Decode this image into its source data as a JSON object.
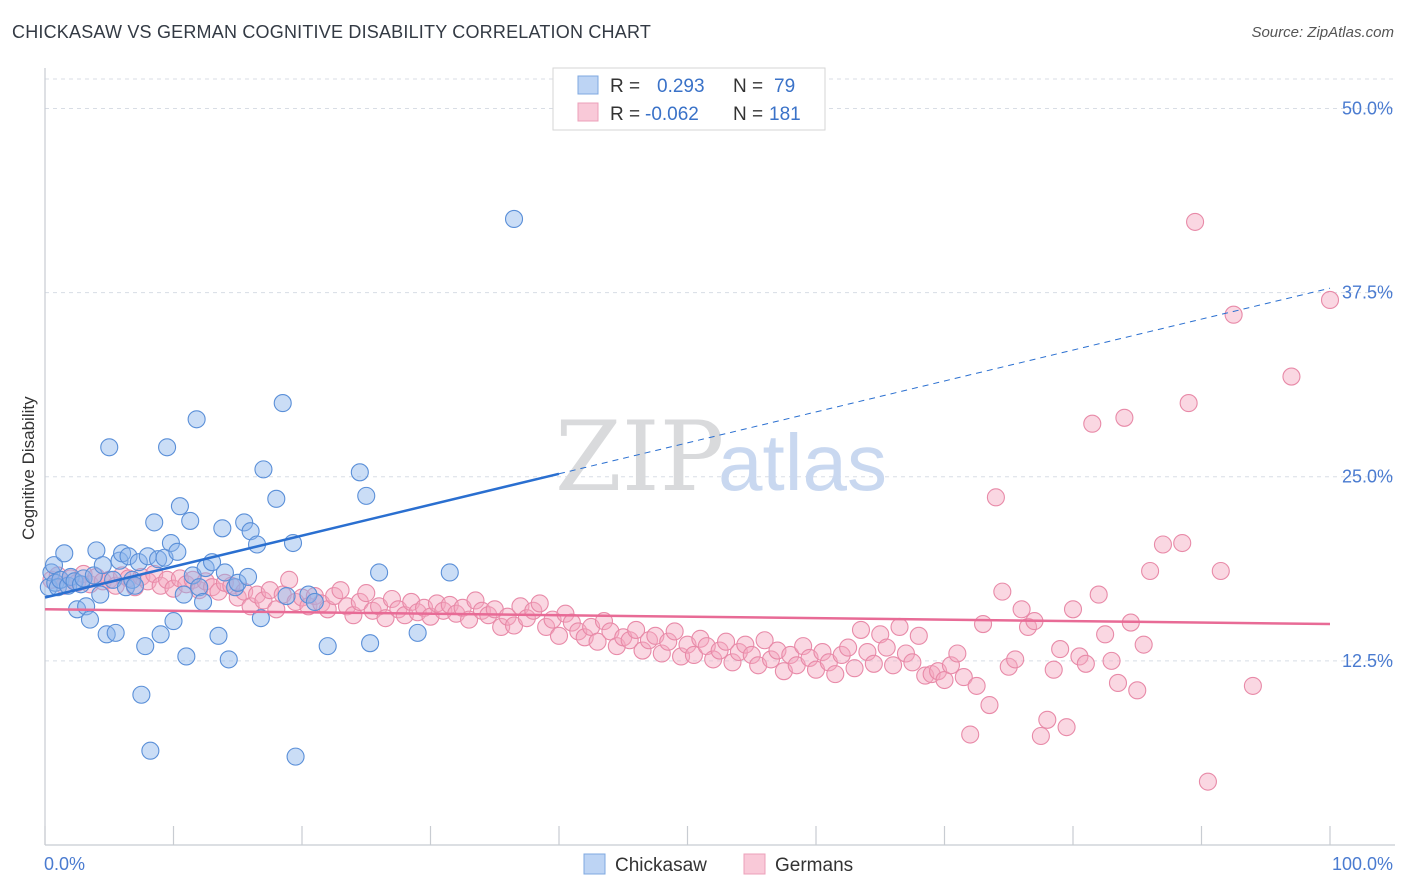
{
  "header": {
    "title": "CHICKASAW VS GERMAN COGNITIVE DISABILITY CORRELATION CHART",
    "source": "Source: ZipAtlas.com"
  },
  "watermark": {
    "zip": "ZIP",
    "atlas": "atlas"
  },
  "legend": {
    "rows": [
      {
        "r_label": "R =",
        "r_value": "0.293",
        "n_label": "N =",
        "n_value": "79",
        "color": "#8ab4ea"
      },
      {
        "r_label": "R =",
        "r_value": "-0.062",
        "n_label": "N =",
        "n_value": "181",
        "color": "#f4a6bf"
      }
    ]
  },
  "bottom_legend": [
    "Chickasaw",
    "Germans"
  ],
  "chart_data": {
    "type": "scatter",
    "title": "CHICKASAW VS GERMAN COGNITIVE DISABILITY CORRELATION CHART",
    "xlabel": "",
    "ylabel": "Cognitive Disability",
    "xlim": [
      0,
      100
    ],
    "ylim": [
      0,
      52
    ],
    "x_tick_labels": [
      "0.0%",
      "100.0%"
    ],
    "y_ticks": [
      12.5,
      25.0,
      37.5,
      50.0
    ],
    "y_tick_labels": [
      "12.5%",
      "25.0%",
      "37.5%",
      "50.0%"
    ],
    "grid": "horizontal dashed",
    "series": [
      {
        "name": "Chickasaw",
        "color": "#8ab4ea",
        "stroke": "#5a8fd8",
        "trend": {
          "x0": 0,
          "y0": 16.8,
          "x1": 40,
          "y1": 25.2,
          "dashed_to": 100,
          "dashed_y": 37.8,
          "color": "#2a6fd0"
        },
        "points": [
          [
            0.3,
            17.5
          ],
          [
            0.5,
            18.5
          ],
          [
            0.7,
            19.0
          ],
          [
            0.8,
            17.8
          ],
          [
            1.0,
            17.5
          ],
          [
            1.2,
            18.0
          ],
          [
            1.5,
            19.8
          ],
          [
            1.8,
            17.6
          ],
          [
            2.0,
            18.2
          ],
          [
            2.3,
            17.9
          ],
          [
            2.5,
            16.0
          ],
          [
            2.8,
            17.7
          ],
          [
            3.0,
            18.1
          ],
          [
            3.2,
            16.2
          ],
          [
            3.5,
            15.3
          ],
          [
            3.8,
            18.3
          ],
          [
            4.0,
            20.0
          ],
          [
            4.3,
            17.0
          ],
          [
            4.5,
            19.0
          ],
          [
            4.8,
            14.3
          ],
          [
            5.0,
            27.0
          ],
          [
            5.3,
            18.0
          ],
          [
            5.5,
            14.4
          ],
          [
            5.8,
            19.3
          ],
          [
            6.0,
            19.8
          ],
          [
            6.3,
            17.5
          ],
          [
            6.5,
            19.6
          ],
          [
            6.8,
            18.0
          ],
          [
            7.0,
            17.6
          ],
          [
            7.3,
            19.2
          ],
          [
            7.5,
            10.2
          ],
          [
            7.8,
            13.5
          ],
          [
            8.0,
            19.6
          ],
          [
            8.2,
            6.4
          ],
          [
            8.5,
            21.9
          ],
          [
            8.8,
            19.4
          ],
          [
            9.0,
            14.3
          ],
          [
            9.3,
            19.5
          ],
          [
            9.5,
            27.0
          ],
          [
            9.8,
            20.5
          ],
          [
            10.0,
            15.2
          ],
          [
            10.3,
            19.9
          ],
          [
            10.5,
            23.0
          ],
          [
            10.8,
            17.0
          ],
          [
            11.0,
            12.8
          ],
          [
            11.3,
            22.0
          ],
          [
            11.5,
            18.3
          ],
          [
            11.8,
            28.9
          ],
          [
            12.0,
            17.5
          ],
          [
            12.3,
            16.5
          ],
          [
            12.5,
            18.8
          ],
          [
            13.0,
            19.2
          ],
          [
            13.5,
            14.2
          ],
          [
            13.8,
            21.5
          ],
          [
            14.0,
            18.5
          ],
          [
            14.3,
            12.6
          ],
          [
            14.8,
            17.5
          ],
          [
            15.0,
            17.8
          ],
          [
            15.5,
            21.9
          ],
          [
            15.8,
            18.2
          ],
          [
            16.0,
            21.3
          ],
          [
            16.5,
            20.4
          ],
          [
            16.8,
            15.4
          ],
          [
            17.0,
            25.5
          ],
          [
            18.0,
            23.5
          ],
          [
            18.5,
            30.0
          ],
          [
            18.8,
            16.9
          ],
          [
            19.3,
            20.5
          ],
          [
            19.5,
            6.0
          ],
          [
            20.5,
            17.0
          ],
          [
            21.0,
            16.5
          ],
          [
            22.0,
            13.5
          ],
          [
            24.5,
            25.3
          ],
          [
            25.0,
            23.7
          ],
          [
            25.3,
            13.7
          ],
          [
            26.0,
            18.5
          ],
          [
            29.0,
            14.4
          ],
          [
            31.5,
            18.5
          ],
          [
            36.5,
            42.5
          ]
        ]
      },
      {
        "name": "Germans",
        "color": "#f4a6bf",
        "stroke": "#e88aa8",
        "trend": {
          "x0": 0,
          "y0": 16.0,
          "x1": 100,
          "y1": 15.0,
          "color": "#e86b96"
        },
        "points": [
          [
            0.5,
            18.0
          ],
          [
            1.0,
            18.3
          ],
          [
            1.5,
            17.6
          ],
          [
            2.0,
            18.1
          ],
          [
            2.5,
            17.8
          ],
          [
            3.0,
            18.4
          ],
          [
            3.5,
            17.7
          ],
          [
            4.0,
            18.2
          ],
          [
            4.5,
            17.9
          ],
          [
            5.0,
            18.0
          ],
          [
            5.5,
            17.6
          ],
          [
            6.0,
            18.3
          ],
          [
            6.5,
            18.1
          ],
          [
            7.0,
            17.5
          ],
          [
            7.5,
            18.2
          ],
          [
            8.0,
            17.9
          ],
          [
            8.5,
            18.4
          ],
          [
            9.0,
            17.6
          ],
          [
            9.5,
            18.0
          ],
          [
            10.0,
            17.4
          ],
          [
            10.5,
            18.1
          ],
          [
            11.0,
            17.7
          ],
          [
            11.5,
            18.0
          ],
          [
            12.0,
            17.3
          ],
          [
            12.5,
            17.9
          ],
          [
            13.0,
            17.5
          ],
          [
            13.5,
            17.2
          ],
          [
            14.0,
            17.8
          ],
          [
            14.5,
            17.6
          ],
          [
            15.0,
            16.8
          ],
          [
            15.5,
            17.2
          ],
          [
            16.0,
            16.2
          ],
          [
            16.5,
            17.0
          ],
          [
            17.0,
            16.6
          ],
          [
            17.5,
            17.3
          ],
          [
            18.0,
            16.0
          ],
          [
            18.5,
            17.0
          ],
          [
            19.0,
            18.0
          ],
          [
            19.5,
            16.5
          ],
          [
            20.0,
            16.8
          ],
          [
            20.5,
            16.2
          ],
          [
            21.0,
            16.9
          ],
          [
            21.5,
            16.4
          ],
          [
            22.0,
            16.0
          ],
          [
            22.5,
            16.9
          ],
          [
            23.0,
            17.3
          ],
          [
            23.5,
            16.2
          ],
          [
            24.0,
            15.6
          ],
          [
            24.5,
            16.5
          ],
          [
            25.0,
            17.1
          ],
          [
            25.5,
            15.9
          ],
          [
            26.0,
            16.2
          ],
          [
            26.5,
            15.4
          ],
          [
            27.0,
            16.7
          ],
          [
            27.5,
            16.0
          ],
          [
            28.0,
            15.6
          ],
          [
            28.5,
            16.5
          ],
          [
            29.0,
            15.8
          ],
          [
            29.5,
            16.1
          ],
          [
            30.0,
            15.5
          ],
          [
            30.5,
            16.4
          ],
          [
            31.0,
            15.9
          ],
          [
            31.5,
            16.3
          ],
          [
            32.0,
            15.7
          ],
          [
            32.5,
            16.1
          ],
          [
            33.0,
            15.3
          ],
          [
            33.5,
            16.6
          ],
          [
            34.0,
            15.9
          ],
          [
            34.5,
            15.6
          ],
          [
            35.0,
            16.0
          ],
          [
            35.5,
            14.8
          ],
          [
            36.0,
            15.5
          ],
          [
            36.5,
            14.9
          ],
          [
            37.0,
            16.2
          ],
          [
            37.5,
            15.4
          ],
          [
            38.0,
            15.9
          ],
          [
            38.5,
            16.4
          ],
          [
            39.0,
            14.8
          ],
          [
            39.5,
            15.3
          ],
          [
            40.0,
            14.2
          ],
          [
            40.5,
            15.7
          ],
          [
            41.0,
            15.1
          ],
          [
            41.5,
            14.5
          ],
          [
            42.0,
            14.1
          ],
          [
            42.5,
            14.8
          ],
          [
            43.0,
            13.8
          ],
          [
            43.5,
            15.2
          ],
          [
            44.0,
            14.5
          ],
          [
            44.5,
            13.5
          ],
          [
            45.0,
            14.1
          ],
          [
            45.5,
            13.9
          ],
          [
            46.0,
            14.6
          ],
          [
            46.5,
            13.2
          ],
          [
            47.0,
            13.9
          ],
          [
            47.5,
            14.2
          ],
          [
            48.0,
            13.0
          ],
          [
            48.5,
            13.8
          ],
          [
            49.0,
            14.5
          ],
          [
            49.5,
            12.8
          ],
          [
            50.0,
            13.6
          ],
          [
            50.5,
            12.9
          ],
          [
            51.0,
            14.0
          ],
          [
            51.5,
            13.5
          ],
          [
            52.0,
            12.6
          ],
          [
            52.5,
            13.2
          ],
          [
            53.0,
            13.8
          ],
          [
            53.5,
            12.4
          ],
          [
            54.0,
            13.1
          ],
          [
            54.5,
            13.6
          ],
          [
            55.0,
            12.9
          ],
          [
            55.5,
            12.2
          ],
          [
            56.0,
            13.9
          ],
          [
            56.5,
            12.6
          ],
          [
            57.0,
            13.2
          ],
          [
            57.5,
            11.8
          ],
          [
            58.0,
            12.9
          ],
          [
            58.5,
            12.2
          ],
          [
            59.0,
            13.5
          ],
          [
            59.5,
            12.7
          ],
          [
            60.0,
            11.9
          ],
          [
            60.5,
            13.1
          ],
          [
            61.0,
            12.4
          ],
          [
            61.5,
            11.6
          ],
          [
            62.0,
            12.9
          ],
          [
            62.5,
            13.4
          ],
          [
            63.0,
            12.0
          ],
          [
            63.5,
            14.6
          ],
          [
            64.0,
            13.1
          ],
          [
            64.5,
            12.3
          ],
          [
            65.0,
            14.3
          ],
          [
            65.5,
            13.4
          ],
          [
            66.0,
            12.2
          ],
          [
            66.5,
            14.8
          ],
          [
            67.0,
            13.0
          ],
          [
            67.5,
            12.4
          ],
          [
            68.0,
            14.2
          ],
          [
            68.5,
            11.5
          ],
          [
            69.0,
            11.6
          ],
          [
            69.5,
            11.8
          ],
          [
            70.0,
            11.2
          ],
          [
            70.5,
            12.2
          ],
          [
            71.0,
            13.0
          ],
          [
            71.5,
            11.4
          ],
          [
            72.0,
            7.5
          ],
          [
            72.5,
            10.8
          ],
          [
            73.0,
            15.0
          ],
          [
            73.5,
            9.5
          ],
          [
            74.0,
            23.6
          ],
          [
            74.5,
            17.2
          ],
          [
            75.0,
            12.1
          ],
          [
            75.5,
            12.6
          ],
          [
            76.0,
            16.0
          ],
          [
            76.5,
            14.8
          ],
          [
            77.0,
            15.2
          ],
          [
            77.5,
            7.4
          ],
          [
            78.0,
            8.5
          ],
          [
            78.5,
            11.9
          ],
          [
            79.0,
            13.3
          ],
          [
            79.5,
            8.0
          ],
          [
            80.0,
            16.0
          ],
          [
            80.5,
            12.8
          ],
          [
            81.0,
            12.3
          ],
          [
            81.5,
            28.6
          ],
          [
            82.0,
            17.0
          ],
          [
            82.5,
            14.3
          ],
          [
            83.0,
            12.5
          ],
          [
            83.5,
            11.0
          ],
          [
            84.0,
            29.0
          ],
          [
            84.5,
            15.1
          ],
          [
            85.0,
            10.5
          ],
          [
            85.5,
            13.6
          ],
          [
            86.0,
            18.6
          ],
          [
            87.0,
            20.4
          ],
          [
            88.5,
            20.5
          ],
          [
            89.0,
            30.0
          ],
          [
            89.5,
            42.3
          ],
          [
            90.5,
            4.3
          ],
          [
            91.5,
            18.6
          ],
          [
            92.5,
            36.0
          ],
          [
            94.0,
            10.8
          ],
          [
            97.0,
            31.8
          ],
          [
            100.0,
            37.0
          ]
        ]
      }
    ]
  }
}
